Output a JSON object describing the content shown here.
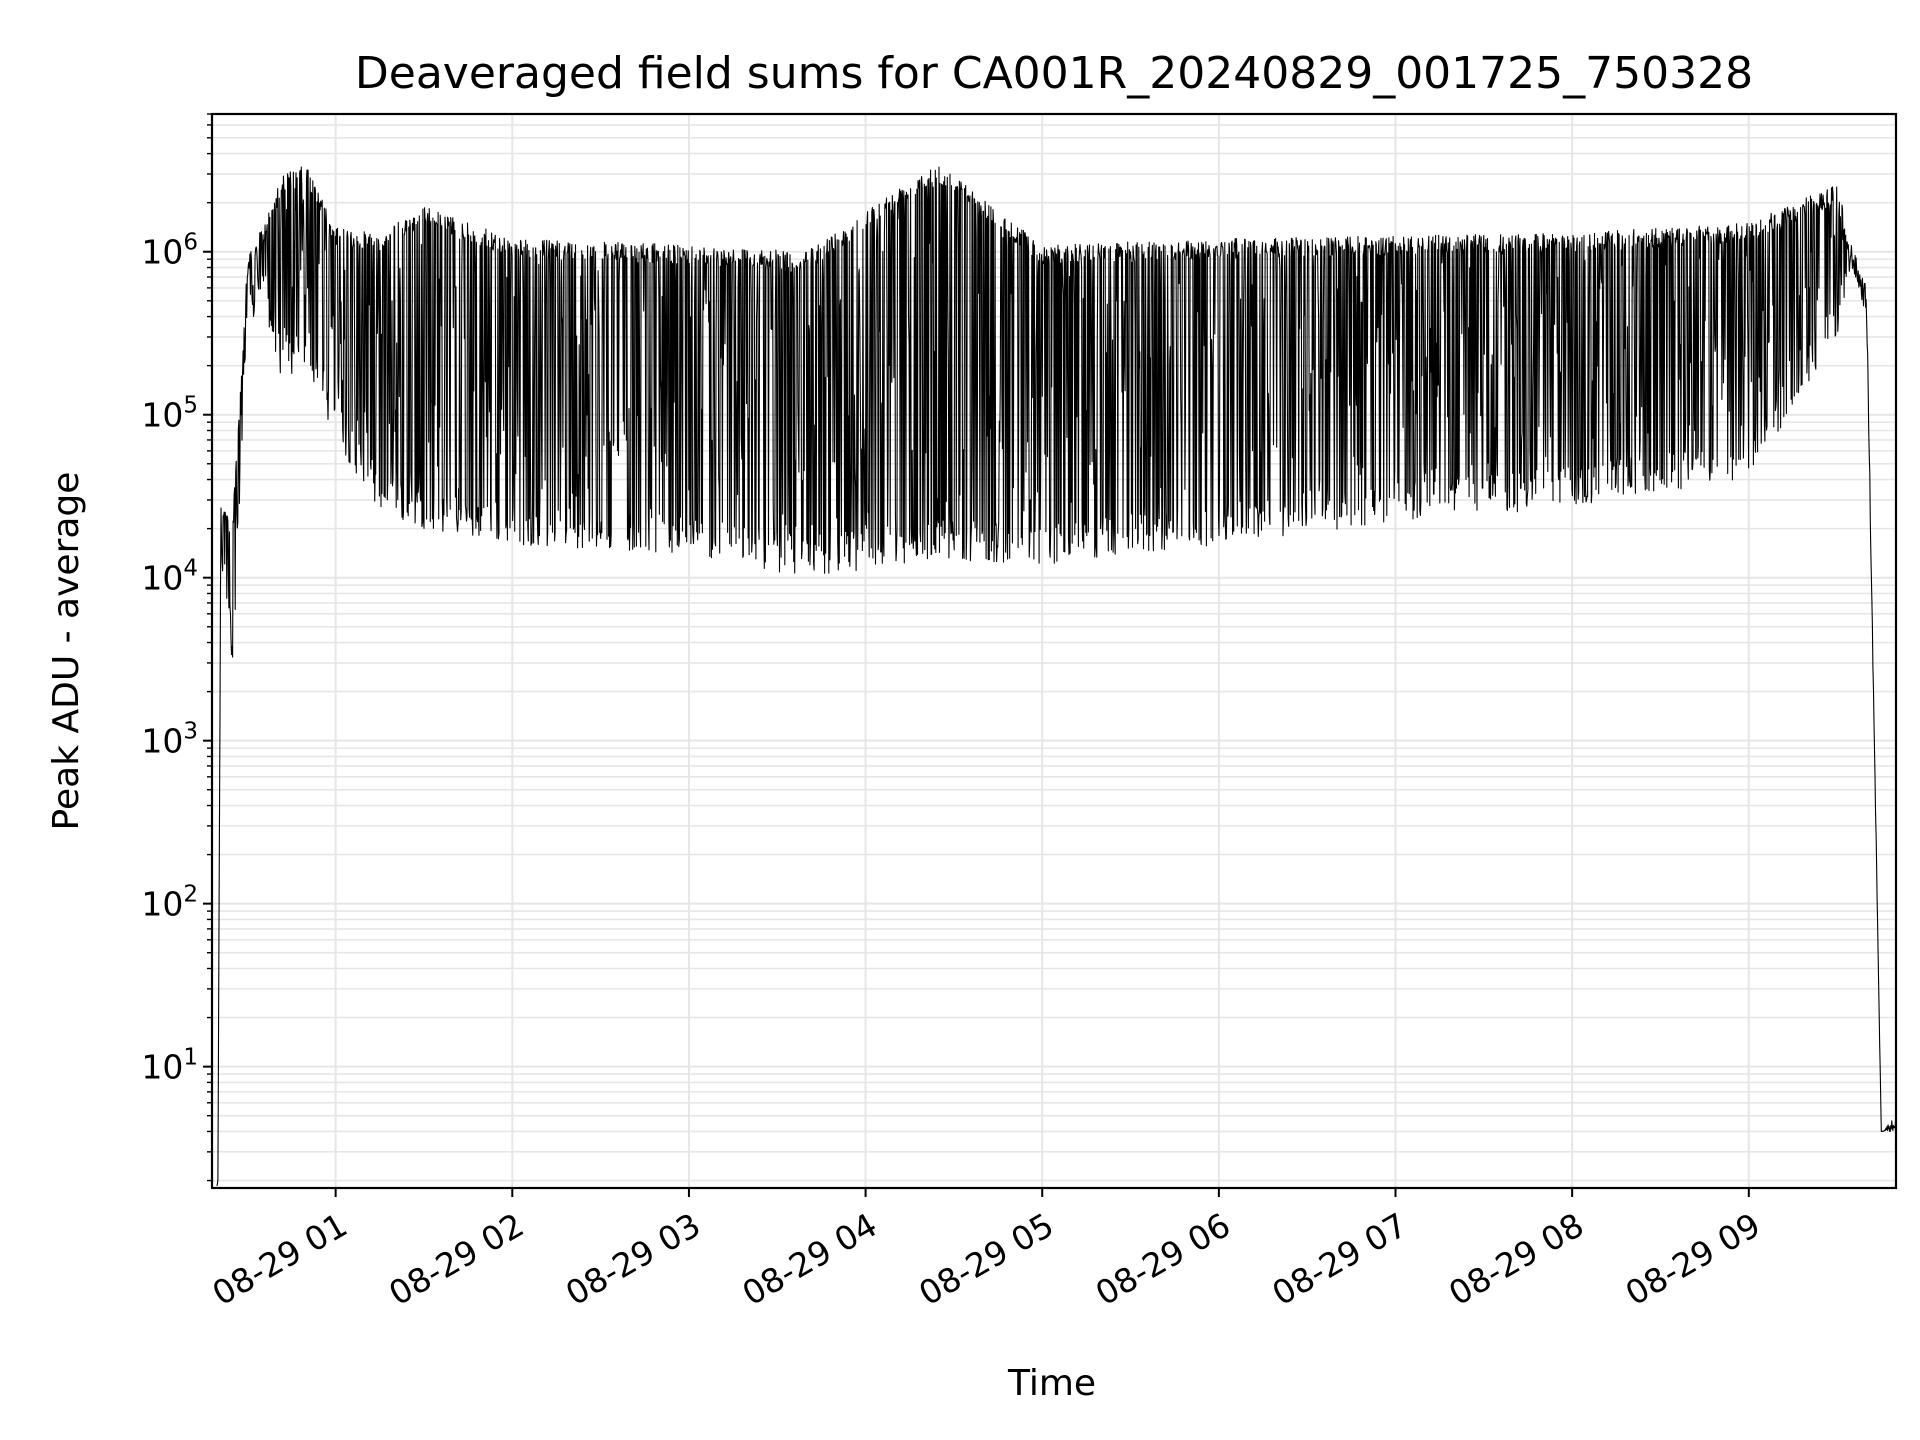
{
  "chart_data": {
    "type": "line",
    "title": "Deaveraged field sums for CA001R_20240829_001725_750328",
    "xlabel": "Time",
    "ylabel": "Peak ADU - average",
    "yscale": "log",
    "grid": true,
    "line_color": "#000000",
    "grid_color": "#e6e6e6",
    "xlim": [
      "2024-08-29 00:18",
      "2024-08-29 09:50"
    ],
    "ylim": [
      1.8,
      7000000
    ],
    "x_ticks": [
      {
        "value": "2024-08-29 01:00",
        "label": "08-29 01"
      },
      {
        "value": "2024-08-29 02:00",
        "label": "08-29 02"
      },
      {
        "value": "2024-08-29 03:00",
        "label": "08-29 03"
      },
      {
        "value": "2024-08-29 04:00",
        "label": "08-29 04"
      },
      {
        "value": "2024-08-29 05:00",
        "label": "08-29 05"
      },
      {
        "value": "2024-08-29 06:00",
        "label": "08-29 06"
      },
      {
        "value": "2024-08-29 07:00",
        "label": "08-29 07"
      },
      {
        "value": "2024-08-29 08:00",
        "label": "08-29 08"
      },
      {
        "value": "2024-08-29 09:00",
        "label": "08-29 09"
      }
    ],
    "y_ticks": [
      {
        "value": 10,
        "base": "10",
        "exp": "1"
      },
      {
        "value": 100,
        "base": "10",
        "exp": "2"
      },
      {
        "value": 1000,
        "base": "10",
        "exp": "3"
      },
      {
        "value": 10000,
        "base": "10",
        "exp": "4"
      },
      {
        "value": 100000,
        "base": "10",
        "exp": "5"
      },
      {
        "value": 1000000,
        "base": "10",
        "exp": "6"
      }
    ],
    "series_envelope": [
      {
        "x": "2024-08-29 00:20",
        "min": 2,
        "max": 2
      },
      {
        "x": "2024-08-29 00:21",
        "min": 12000,
        "max": 32000
      },
      {
        "x": "2024-08-29 00:25",
        "min": 2800,
        "max": 22000
      },
      {
        "x": "2024-08-29 00:30",
        "min": 300000,
        "max": 900000
      },
      {
        "x": "2024-08-29 00:35",
        "min": 500000,
        "max": 1400000
      },
      {
        "x": "2024-08-29 00:42",
        "min": 150000,
        "max": 3000000
      },
      {
        "x": "2024-08-29 00:50",
        "min": 200000,
        "max": 3400000
      },
      {
        "x": "2024-08-29 01:00",
        "min": 70000,
        "max": 1400000
      },
      {
        "x": "2024-08-29 01:15",
        "min": 25000,
        "max": 1300000
      },
      {
        "x": "2024-08-29 01:30",
        "min": 20000,
        "max": 1900000
      },
      {
        "x": "2024-08-29 02:00",
        "min": 16000,
        "max": 1200000
      },
      {
        "x": "2024-08-29 03:00",
        "min": 14000,
        "max": 1100000
      },
      {
        "x": "2024-08-29 03:40",
        "min": 10000,
        "max": 1000000
      },
      {
        "x": "2024-08-29 04:24",
        "min": 13000,
        "max": 3600000
      },
      {
        "x": "2024-08-29 05:00",
        "min": 12000,
        "max": 1100000
      },
      {
        "x": "2024-08-29 06:00",
        "min": 16000,
        "max": 1200000
      },
      {
        "x": "2024-08-29 07:00",
        "min": 22000,
        "max": 1250000
      },
      {
        "x": "2024-08-29 08:00",
        "min": 27000,
        "max": 1300000
      },
      {
        "x": "2024-08-29 09:00",
        "min": 40000,
        "max": 1500000
      },
      {
        "x": "2024-08-29 09:30",
        "min": 300000,
        "max": 2600000
      },
      {
        "x": "2024-08-29 09:35",
        "min": 800000,
        "max": 1100000
      },
      {
        "x": "2024-08-29 09:40",
        "min": 400000,
        "max": 600000
      },
      {
        "x": "2024-08-29 09:45",
        "min": 4,
        "max": 4
      },
      {
        "x": "2024-08-29 09:50",
        "min": 4,
        "max": 5
      }
    ]
  }
}
